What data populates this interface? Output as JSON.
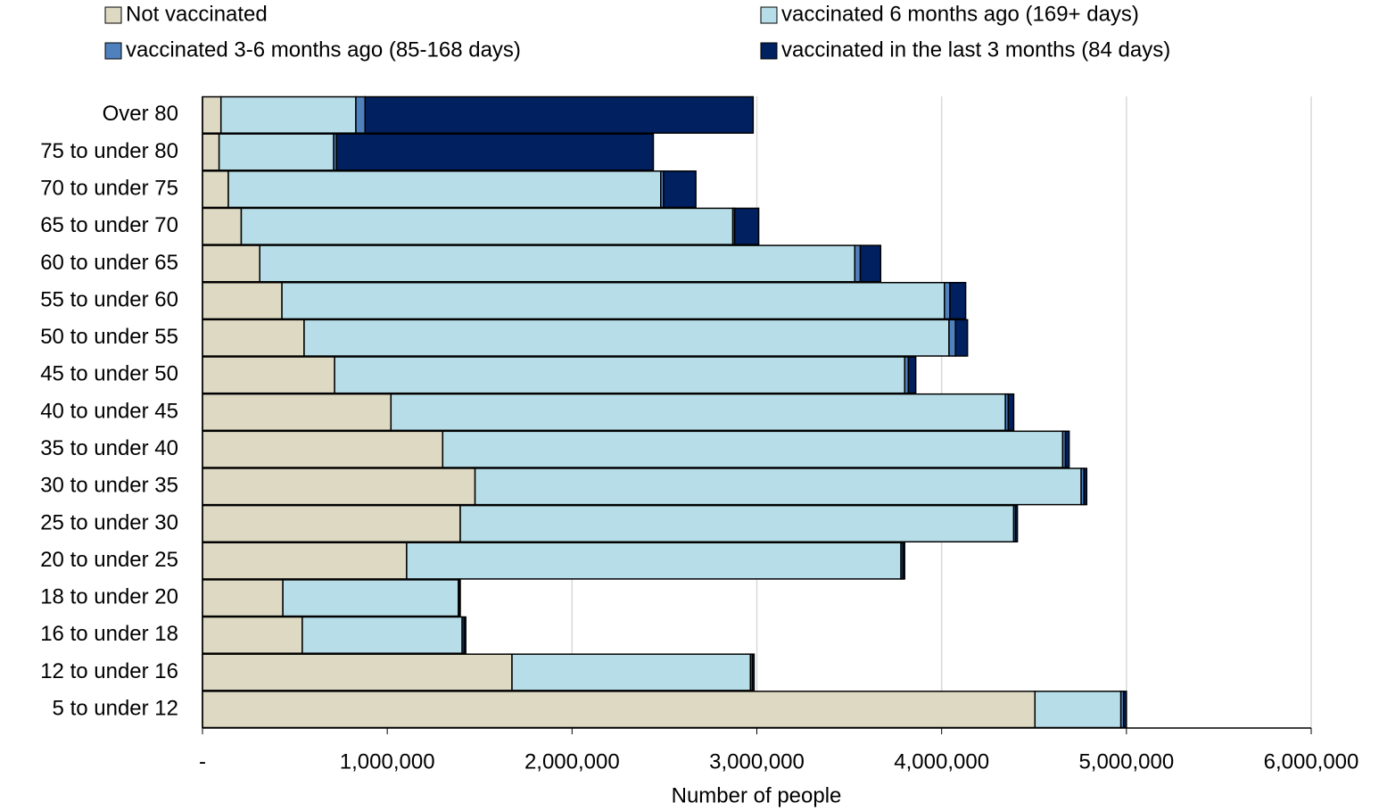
{
  "chart_data": {
    "type": "stacked-barh",
    "xlabel": "Number of people",
    "categories": [
      "Over 80",
      "75 to under 80",
      "70 to under 75",
      "65 to under 70",
      "60 to under 65",
      "55 to under 60",
      "50 to under 55",
      "45 to under 50",
      "40 to under 45",
      "35 to under 40",
      "30 to under 35",
      "25 to under 30",
      "20 to under 25",
      "18 to under 20",
      "16 to under 18",
      "12 to under 16",
      "5 to under 12"
    ],
    "series": [
      {
        "name": "Not vaccinated",
        "color": "#ddd9c3",
        "values": [
          100000,
          90000,
          140000,
          210000,
          310000,
          430000,
          550000,
          715000,
          1020000,
          1300000,
          1475000,
          1395000,
          1105000,
          435000,
          540000,
          1675000,
          4505000
        ]
      },
      {
        "name": "vaccinated 6 months ago (169+ days)",
        "color": "#b7dee8",
        "values": [
          730000,
          620000,
          2340000,
          2660000,
          3220000,
          3585000,
          3490000,
          3085000,
          3325000,
          3355000,
          3280000,
          2995000,
          2675000,
          950000,
          865000,
          1290000,
          465000
        ]
      },
      {
        "name": "vaccinated 3-6 months ago (85-168 days)",
        "color": "#4f81bd",
        "values": [
          50000,
          15000,
          15000,
          10000,
          30000,
          30000,
          35000,
          20000,
          15000,
          15000,
          15000,
          10000,
          10000,
          5000,
          10000,
          10000,
          15000
        ]
      },
      {
        "name": "vaccinated in the last 3 months (84 days)",
        "color": "#002060",
        "values": [
          2100000,
          1715000,
          175000,
          130000,
          110000,
          85000,
          65000,
          40000,
          30000,
          20000,
          15000,
          10000,
          10000,
          5000,
          10000,
          10000,
          15000
        ]
      }
    ],
    "xlim": [
      0,
      6000000
    ],
    "xticks": [
      {
        "value": 0,
        "label": "-"
      },
      {
        "value": 1000000,
        "label": "1,000,000"
      },
      {
        "value": 2000000,
        "label": "2,000,000"
      },
      {
        "value": 3000000,
        "label": "3,000,000"
      },
      {
        "value": 4000000,
        "label": "4,000,000"
      },
      {
        "value": 5000000,
        "label": "5,000,000"
      },
      {
        "value": 6000000,
        "label": "6,000,000"
      }
    ],
    "grid": true,
    "legend": "top"
  }
}
